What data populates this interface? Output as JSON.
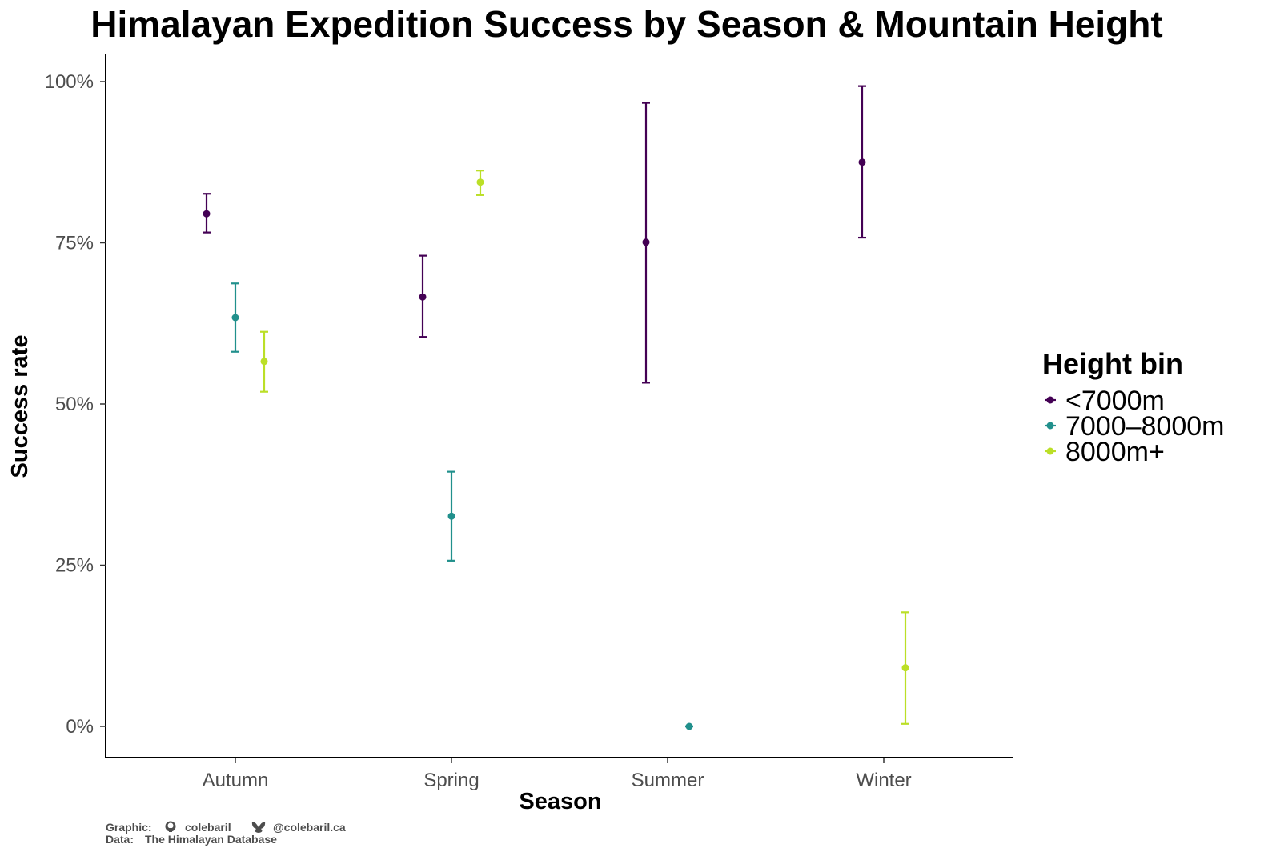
{
  "chart_data": {
    "type": "scatter",
    "subtype": "pointrange-errorbar",
    "title": "Himalayan Expedition Success by Season & Mountain Height",
    "xlabel": "Season",
    "ylabel": "Success rate",
    "categories": [
      "Autumn",
      "Spring",
      "Summer",
      "Winter"
    ],
    "ylim": [
      -0.05,
      1.04
    ],
    "yticks": [
      0,
      0.25,
      0.5,
      0.75,
      1.0
    ],
    "ytick_labels": [
      "0%",
      "25%",
      "50%",
      "75%",
      "100%"
    ],
    "grid": false,
    "legend": {
      "title": "Height bin",
      "placement": "right"
    },
    "series": [
      {
        "name": "<7000m",
        "color": "#440154",
        "points": [
          {
            "category": "Autumn",
            "value": 0.795,
            "low": 0.766,
            "high": 0.826
          },
          {
            "category": "Spring",
            "value": 0.666,
            "low": 0.604,
            "high": 0.73
          },
          {
            "category": "Summer",
            "value": 0.751,
            "low": 0.533,
            "high": 0.967
          },
          {
            "category": "Winter",
            "value": 0.875,
            "low": 0.758,
            "high": 0.993
          }
        ]
      },
      {
        "name": "7000–8000m",
        "color": "#21908C",
        "points": [
          {
            "category": "Autumn",
            "value": 0.634,
            "low": 0.581,
            "high": 0.687
          },
          {
            "category": "Spring",
            "value": 0.326,
            "low": 0.257,
            "high": 0.395
          },
          {
            "category": "Summer",
            "value": 0.0,
            "low": 0.0,
            "high": 0.0
          }
        ]
      },
      {
        "name": "8000m+",
        "color": "#BBDF27",
        "points": [
          {
            "category": "Autumn",
            "value": 0.566,
            "low": 0.519,
            "high": 0.612
          },
          {
            "category": "Spring",
            "value": 0.844,
            "low": 0.824,
            "high": 0.862
          },
          {
            "category": "Winter",
            "value": 0.091,
            "low": 0.004,
            "high": 0.177
          }
        ]
      }
    ]
  },
  "caption": {
    "graphic_label": "Graphic:",
    "github_handle": "colebaril",
    "bluesky_handle": "@colebaril.ca",
    "data_label": "Data:",
    "data_source": "The Himalayan Database"
  }
}
